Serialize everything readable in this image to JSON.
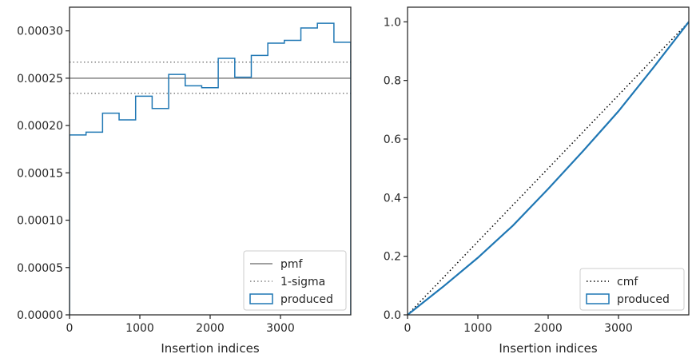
{
  "chart_data": [
    {
      "type": "histogram",
      "xlabel": "Insertion indices",
      "ylabel": "",
      "xlim": [
        0,
        4000
      ],
      "ylim": [
        0,
        0.000325
      ],
      "xticks": [
        0,
        1000,
        2000,
        3000
      ],
      "xtick_labels": [
        "0",
        "1000",
        "2000",
        "3000"
      ],
      "yticks": [
        0,
        5e-05,
        0.0001,
        0.00015,
        0.0002,
        0.00025,
        0.0003
      ],
      "ytick_labels": [
        "0.00000",
        "0.00005",
        "0.00010",
        "0.00015",
        "0.00020",
        "0.00025",
        "0.00030"
      ],
      "legend_position": "lower-right",
      "bin_edges": [
        0,
        235,
        470,
        705,
        940,
        1175,
        1410,
        1645,
        1880,
        2115,
        2350,
        2585,
        2820,
        3055,
        3290,
        3525,
        3760,
        4000
      ],
      "series": [
        {
          "name": "pmf",
          "kind": "hline",
          "style": "solid",
          "color": "#808080",
          "value": 0.00025
        },
        {
          "name": "1-sigma",
          "kind": "hlines",
          "style": "dotted",
          "color": "#808080",
          "values": [
            0.000267,
            0.000234
          ]
        },
        {
          "name": "produced",
          "kind": "step",
          "color": "#1f77b4",
          "values": [
            0.00019,
            0.000193,
            0.000213,
            0.000206,
            0.000231,
            0.000218,
            0.000254,
            0.000242,
            0.00024,
            0.000271,
            0.000251,
            0.000274,
            0.000287,
            0.00029,
            0.000303,
            0.000308,
            0.000288
          ]
        }
      ]
    },
    {
      "type": "line",
      "xlabel": "Insertion indices",
      "ylabel": "",
      "xlim": [
        0,
        4000
      ],
      "ylim": [
        0,
        1.05
      ],
      "xticks": [
        0,
        1000,
        2000,
        3000
      ],
      "xtick_labels": [
        "0",
        "1000",
        "2000",
        "3000"
      ],
      "yticks": [
        0,
        0.2,
        0.4,
        0.6,
        0.8,
        1.0
      ],
      "ytick_labels": [
        "0.0",
        "0.2",
        "0.4",
        "0.6",
        "0.8",
        "1.0"
      ],
      "legend_position": "lower-right",
      "series": [
        {
          "name": "cmf",
          "style": "dotted",
          "color": "#000000",
          "x": [
            0,
            4000
          ],
          "y": [
            0,
            1
          ]
        },
        {
          "name": "produced",
          "style": "solid",
          "color": "#1f77b4",
          "x": [
            0,
            500,
            1000,
            1500,
            2000,
            2500,
            3000,
            3500,
            4000
          ],
          "y": [
            0,
            0.095,
            0.195,
            0.305,
            0.43,
            0.56,
            0.695,
            0.845,
            1.0
          ]
        }
      ]
    }
  ]
}
